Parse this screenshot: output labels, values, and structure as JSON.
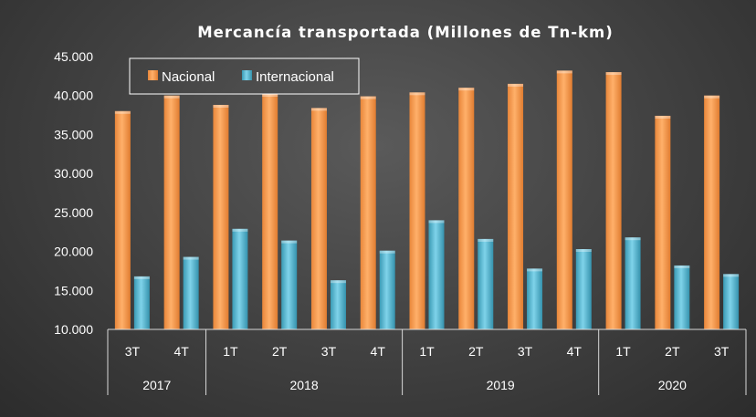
{
  "chart_data": {
    "type": "bar",
    "title": "Mercancía transportada  (Millones de Tn-km)",
    "ylim": [
      10000,
      45000
    ],
    "yticks": [
      "10.000",
      "15.000",
      "20.000",
      "25.000",
      "30.000",
      "35.000",
      "40.000",
      "45.000"
    ],
    "ytick_values": [
      10000,
      15000,
      20000,
      25000,
      30000,
      35000,
      40000,
      45000
    ],
    "groups": [
      {
        "year": "2017",
        "quarters": [
          "3T",
          "4T"
        ]
      },
      {
        "year": "2018",
        "quarters": [
          "1T",
          "2T",
          "3T",
          "4T"
        ]
      },
      {
        "year": "2019",
        "quarters": [
          "1T",
          "2T",
          "3T",
          "4T"
        ]
      },
      {
        "year": "2020",
        "quarters": [
          "1T",
          "2T",
          "3T"
        ]
      }
    ],
    "categories": [
      "2017 3T",
      "2017 4T",
      "2018 1T",
      "2018 2T",
      "2018 3T",
      "2018 4T",
      "2019 1T",
      "2019 2T",
      "2019 3T",
      "2019 4T",
      "2020 1T",
      "2020 2T",
      "2020 3T"
    ],
    "series": [
      {
        "name": "Nacional",
        "color": "#f79646",
        "values": [
          38000,
          40000,
          38800,
          40200,
          38400,
          39900,
          40400,
          41000,
          41500,
          43200,
          43000,
          37400,
          40000
        ]
      },
      {
        "name": "Internacional",
        "color": "#4bacc6",
        "values": [
          16800,
          19300,
          22900,
          21400,
          16300,
          20100,
          24000,
          21600,
          17800,
          20300,
          21800,
          18200,
          17100
        ]
      }
    ],
    "legend_position": "top-left",
    "grid": false
  }
}
